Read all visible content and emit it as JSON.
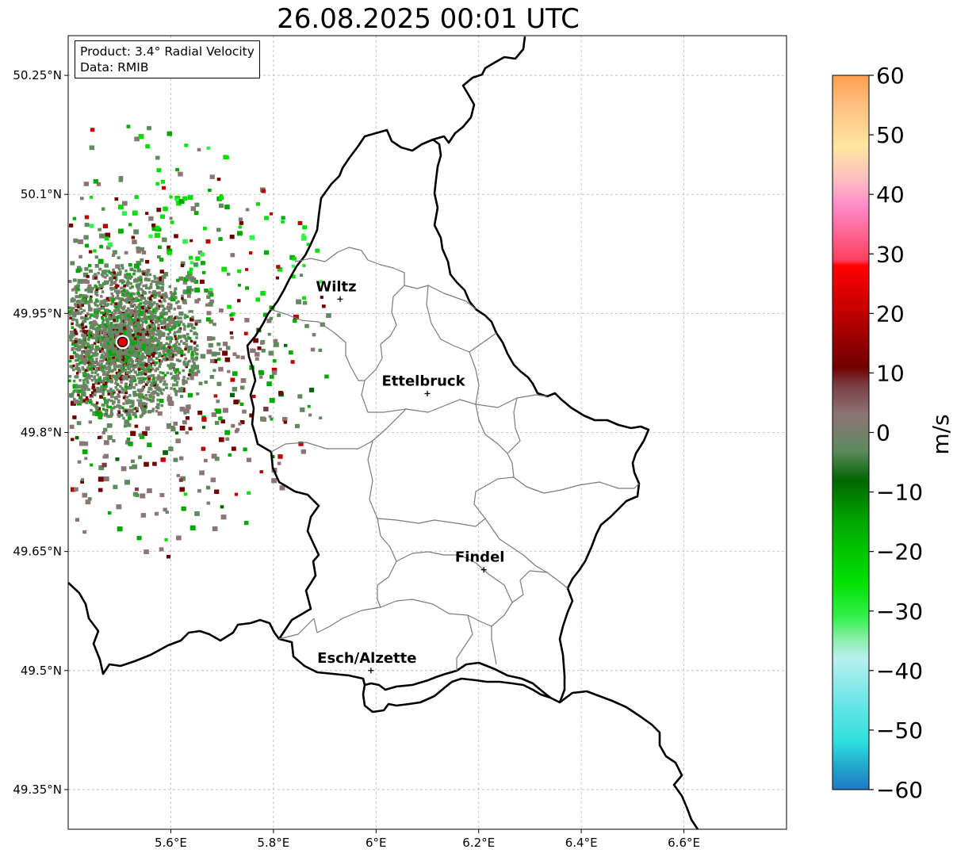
{
  "title": "26.08.2025 00:01 UTC",
  "info": {
    "product": "Product: 3.4° Radial Velocity",
    "data": "Data: RMIB"
  },
  "axes": {
    "lon_min": 5.4,
    "lon_max": 6.8,
    "lat_min": 49.3,
    "lat_max": 50.3,
    "lon_ticks": [
      {
        "value": 5.6,
        "label": "5.6°E"
      },
      {
        "value": 5.8,
        "label": "5.8°E"
      },
      {
        "value": 6.0,
        "label": "6°E"
      },
      {
        "value": 6.2,
        "label": "6.2°E"
      },
      {
        "value": 6.4,
        "label": "6.4°E"
      },
      {
        "value": 6.6,
        "label": "6.6°E"
      }
    ],
    "lat_ticks": [
      {
        "value": 50.25,
        "label": "50.25°N"
      },
      {
        "value": 50.1,
        "label": "50.1°N"
      },
      {
        "value": 49.95,
        "label": "49.95°N"
      },
      {
        "value": 49.8,
        "label": "49.8°N"
      },
      {
        "value": 49.65,
        "label": "49.65°N"
      },
      {
        "value": 49.5,
        "label": "49.5°N"
      },
      {
        "value": 49.35,
        "label": "49.35°N"
      }
    ]
  },
  "cities": [
    {
      "name": "Wiltz",
      "lon": 5.93,
      "lat": 49.968
    },
    {
      "name": "Ettelbruck",
      "lon": 6.1,
      "lat": 49.849
    },
    {
      "name": "Findel",
      "lon": 6.21,
      "lat": 49.627
    },
    {
      "name": "Esch/Alzette",
      "lon": 5.99,
      "lat": 49.5
    }
  ],
  "radar": {
    "lon": 5.506,
    "lat": 49.914,
    "marker_color": "#e00000"
  },
  "colorbar": {
    "unit": "m/s",
    "min": -60,
    "max": 60,
    "ticks": [
      {
        "value": 60,
        "label": "60"
      },
      {
        "value": 50,
        "label": "50"
      },
      {
        "value": 40,
        "label": "40"
      },
      {
        "value": 30,
        "label": "30"
      },
      {
        "value": 20,
        "label": "20"
      },
      {
        "value": 10,
        "label": "10"
      },
      {
        "value": 0,
        "label": "0"
      },
      {
        "value": -10,
        "label": "−10"
      },
      {
        "value": -20,
        "label": "−20"
      },
      {
        "value": -30,
        "label": "−30"
      },
      {
        "value": -40,
        "label": "−40"
      },
      {
        "value": -50,
        "label": "−50"
      },
      {
        "value": -60,
        "label": "−60"
      }
    ],
    "stops": [
      {
        "v": -60,
        "c": "#1f78c4"
      },
      {
        "v": -56,
        "c": "#24a8cc"
      },
      {
        "v": -52,
        "c": "#2fdede"
      },
      {
        "v": -45,
        "c": "#6ee6e6"
      },
      {
        "v": -38,
        "c": "#b8efef"
      },
      {
        "v": -35,
        "c": "#90eeb0"
      },
      {
        "v": -31,
        "c": "#33f04d"
      },
      {
        "v": -25,
        "c": "#00e000"
      },
      {
        "v": -15,
        "c": "#00a800"
      },
      {
        "v": -8,
        "c": "#006600"
      },
      {
        "v": -3,
        "c": "#5e8a5e"
      },
      {
        "v": 3,
        "c": "#8b7575"
      },
      {
        "v": 8,
        "c": "#7a3c44"
      },
      {
        "v": 11,
        "c": "#700000"
      },
      {
        "v": 20,
        "c": "#c00000"
      },
      {
        "v": 28,
        "c": "#ff0000"
      },
      {
        "v": 29,
        "c": "#ff4060"
      },
      {
        "v": 38,
        "c": "#ff8aca"
      },
      {
        "v": 42,
        "c": "#ffb8c4"
      },
      {
        "v": 48,
        "c": "#ffe6a0"
      },
      {
        "v": 55,
        "c": "#ffc080"
      },
      {
        "v": 60,
        "c": "#ffa050"
      }
    ]
  },
  "colors": {
    "country_border": "#000000",
    "canton_border": "#7a7a7a",
    "grid": "#b8b8b8"
  }
}
